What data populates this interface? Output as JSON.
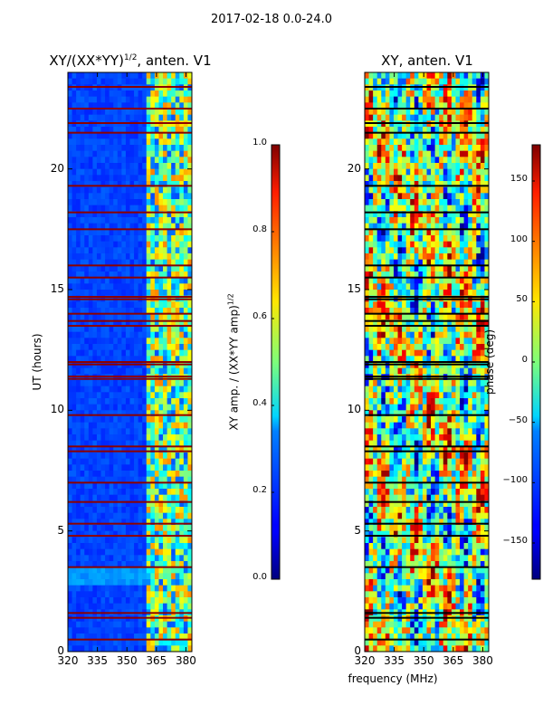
{
  "figure": {
    "suptitle": "2017-02-18 0.0-24.0",
    "shared_xlabel": "frequency (MHz)"
  },
  "chart_data": [
    {
      "type": "heatmap",
      "title_main": "XY/(XX*YY)",
      "title_exp": "1/2",
      "title_tail": ", anten. V1",
      "xlabel": "",
      "ylabel": "UT (hours)",
      "xlim": [
        320,
        383
      ],
      "ylim": [
        0,
        24
      ],
      "xticks": [
        320,
        335,
        350,
        365,
        380
      ],
      "yticks": [
        0,
        5,
        10,
        15,
        20
      ],
      "colormap": "jet",
      "colorbar": {
        "label_main": "XY amp. / (XX*YY amp)",
        "label_exp": "1/2",
        "range": [
          0.0,
          1.0
        ],
        "ticks": [
          "0.0",
          "0.2",
          "0.4",
          "0.6",
          "0.8",
          "1.0"
        ]
      },
      "bright_band_start_mhz": 360,
      "flagged_hours": [
        0.5,
        1.4,
        1.6,
        3.5,
        4.8,
        5.3,
        6.2,
        7.0,
        8.3,
        8.5,
        9.8,
        11.3,
        11.4,
        11.9,
        12.0,
        13.5,
        13.7,
        14.0,
        14.6,
        14.7,
        15.5,
        16.0,
        17.5,
        18.2,
        19.3,
        21.5,
        21.9,
        22.5,
        23.4
      ],
      "high_amp_hours": [
        20.6,
        21.2
      ]
    },
    {
      "type": "heatmap",
      "title_main": "XY, anten. V1",
      "xlabel": "frequency (MHz)",
      "ylabel": "",
      "xlim": [
        320,
        383
      ],
      "ylim": [
        0,
        24
      ],
      "xticks": [
        320,
        335,
        350,
        365,
        380
      ],
      "yticks": [
        0,
        5,
        10,
        15,
        20
      ],
      "colormap": "jet",
      "colorbar": {
        "label_main": "phase (deg)",
        "range": [
          -180,
          180
        ],
        "ticks": [
          "150",
          "100",
          "50",
          "0",
          "−50",
          "−100",
          "−150"
        ]
      },
      "flagged_hours": [
        0.5,
        1.4,
        1.6,
        3.5,
        4.8,
        5.3,
        6.2,
        7.0,
        8.3,
        8.5,
        9.8,
        11.3,
        11.4,
        11.9,
        12.0,
        13.5,
        13.7,
        14.0,
        14.6,
        14.7,
        15.5,
        16.0,
        17.5,
        18.2,
        19.3,
        21.5,
        21.9,
        22.5,
        23.4
      ]
    }
  ]
}
